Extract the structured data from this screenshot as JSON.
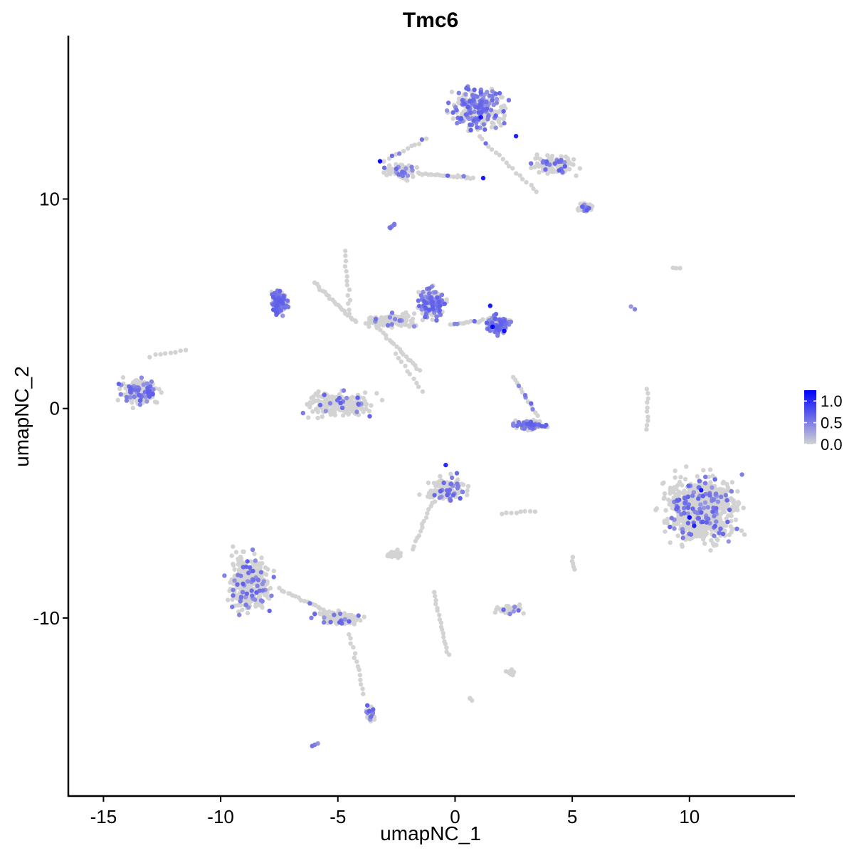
{
  "chart_data": {
    "type": "scatter",
    "title": "Tmc6",
    "xlabel": "umapNC_1",
    "ylabel": "umapNC_2",
    "xlim": [
      -16.5,
      14.5
    ],
    "ylim": [
      -18.5,
      17.8
    ],
    "x_ticks": [
      -15,
      -10,
      -5,
      0,
      5,
      10
    ],
    "x_tick_labels": [
      "-15",
      "-10",
      "-5",
      "0",
      "5",
      "10"
    ],
    "y_ticks": [
      -10,
      0,
      10
    ],
    "y_tick_labels": [
      "-10",
      "0",
      "10"
    ],
    "grid": false,
    "legend": {
      "placement": "right",
      "title": "",
      "labels": [
        "1.0",
        "0.5",
        "0.0"
      ],
      "values": [
        1.0,
        0.5,
        0.0
      ],
      "min": 0.0,
      "max": 1.25
    },
    "colors": {
      "low": "#d3d3d3",
      "high": "#0000ff",
      "axis": "#000000"
    },
    "clusters": [
      {
        "name": "upper-right lobe",
        "cx": 1.0,
        "cy": 14.3,
        "rx": 1.6,
        "ry": 1.4,
        "n": 260,
        "expr_frac": 0.42
      },
      {
        "name": "upper-right arm",
        "cx": 4.2,
        "cy": 11.6,
        "rx": 1.4,
        "ry": 0.6,
        "n": 110,
        "expr_frac": 0.18
      },
      {
        "name": "upper-right tail",
        "cx": 5.5,
        "cy": 9.6,
        "rx": 0.5,
        "ry": 0.35,
        "n": 35,
        "expr_frac": 0.35
      },
      {
        "name": "upper-left arm",
        "cx": -2.3,
        "cy": 11.3,
        "rx": 1.0,
        "ry": 0.5,
        "n": 70,
        "expr_frac": 0.25
      },
      {
        "name": "central hub",
        "cx": -2.7,
        "cy": 4.2,
        "rx": 1.5,
        "ry": 0.5,
        "n": 120,
        "expr_frac": 0.05
      },
      {
        "name": "crescent cluster",
        "cx": -7.5,
        "cy": 5.1,
        "rx": 0.5,
        "ry": 0.8,
        "n": 110,
        "expr_frac": 0.75
      },
      {
        "name": "mid lobe",
        "cx": -1.0,
        "cy": 5.0,
        "rx": 0.8,
        "ry": 1.1,
        "n": 140,
        "expr_frac": 0.45
      },
      {
        "name": "mid dense cluster",
        "cx": 1.9,
        "cy": 4.0,
        "rx": 0.7,
        "ry": 0.6,
        "n": 110,
        "expr_frac": 0.65
      },
      {
        "name": "bowl cluster",
        "cx": -5.0,
        "cy": 0.2,
        "rx": 2.0,
        "ry": 0.8,
        "n": 210,
        "expr_frac": 0.1
      },
      {
        "name": "left cluster",
        "cx": -13.5,
        "cy": 0.8,
        "rx": 1.2,
        "ry": 0.9,
        "n": 150,
        "expr_frac": 0.3
      },
      {
        "name": "curl cluster",
        "cx": 3.3,
        "cy": -0.8,
        "rx": 1.1,
        "ry": 0.35,
        "n": 70,
        "expr_frac": 0.45
      },
      {
        "name": "pear cluster",
        "cx": -0.4,
        "cy": -3.8,
        "rx": 1.2,
        "ry": 0.9,
        "n": 130,
        "expr_frac": 0.2
      },
      {
        "name": "large right cluster",
        "cx": 10.5,
        "cy": -4.8,
        "rx": 2.1,
        "ry": 2.1,
        "n": 800,
        "expr_frac": 0.12
      },
      {
        "name": "lower-left lobe",
        "cx": -8.8,
        "cy": -8.3,
        "rx": 1.3,
        "ry": 1.9,
        "n": 340,
        "expr_frac": 0.15
      },
      {
        "name": "lower trail",
        "cx": -5.0,
        "cy": -10.0,
        "rx": 1.4,
        "ry": 0.45,
        "n": 80,
        "expr_frac": 0.15
      },
      {
        "name": "small lower cluster",
        "cx": 2.3,
        "cy": -9.6,
        "rx": 0.8,
        "ry": 0.3,
        "n": 45,
        "expr_frac": 0.1
      },
      {
        "name": "bottom strand",
        "cx": -3.6,
        "cy": -14.6,
        "rx": 0.3,
        "ry": 0.8,
        "n": 35,
        "expr_frac": 0.4
      },
      {
        "name": "left patch",
        "cx": -2.6,
        "cy": -6.9,
        "rx": 0.5,
        "ry": 0.3,
        "n": 25,
        "expr_frac": 0.0
      },
      {
        "name": "low patch",
        "cx": 2.4,
        "cy": -12.6,
        "rx": 0.3,
        "ry": 0.2,
        "n": 12,
        "expr_frac": 0.0
      }
    ],
    "trails": [
      {
        "from": [
          -1.2,
          12.9
        ],
        "to": [
          -3.0,
          11.8
        ],
        "n": 12,
        "expr_frac": 0.2
      },
      {
        "from": [
          -1.5,
          11.2
        ],
        "to": [
          0.8,
          11.0
        ],
        "n": 22,
        "expr_frac": 0.15
      },
      {
        "from": [
          1.0,
          13.0
        ],
        "to": [
          3.5,
          10.3
        ],
        "n": 18,
        "expr_frac": 0.1
      },
      {
        "from": [
          -6.0,
          6.0
        ],
        "to": [
          -4.2,
          4.1
        ],
        "n": 22,
        "expr_frac": 0.05
      },
      {
        "from": [
          -4.7,
          7.5
        ],
        "to": [
          -4.5,
          4.5
        ],
        "n": 14,
        "expr_frac": 0.0
      },
      {
        "from": [
          -3.6,
          4.2
        ],
        "to": [
          -1.5,
          1.8
        ],
        "n": 22,
        "expr_frac": 0.1
      },
      {
        "from": [
          -2.5,
          2.6
        ],
        "to": [
          -1.4,
          0.8
        ],
        "n": 10,
        "expr_frac": 0.1
      },
      {
        "from": [
          -0.2,
          4.0
        ],
        "to": [
          1.2,
          4.2
        ],
        "n": 15,
        "expr_frac": 0.3
      },
      {
        "from": [
          2.5,
          1.5
        ],
        "to": [
          3.5,
          -0.3
        ],
        "n": 14,
        "expr_frac": 0.4
      },
      {
        "from": [
          -1.0,
          -4.5
        ],
        "to": [
          -1.8,
          -6.7
        ],
        "n": 14,
        "expr_frac": 0.0
      },
      {
        "from": [
          -7.5,
          -8.6
        ],
        "to": [
          -4.3,
          -10.3
        ],
        "n": 28,
        "expr_frac": 0.12
      },
      {
        "from": [
          -4.5,
          -10.8
        ],
        "to": [
          -3.9,
          -13.6
        ],
        "n": 14,
        "expr_frac": 0.0
      },
      {
        "from": [
          -0.9,
          -8.8
        ],
        "to": [
          -0.3,
          -11.8
        ],
        "n": 18,
        "expr_frac": 0.05
      },
      {
        "from": [
          8.2,
          -1.0
        ],
        "to": [
          8.2,
          0.9
        ],
        "n": 10,
        "expr_frac": 0.0
      },
      {
        "from": [
          -13.0,
          2.5
        ],
        "to": [
          -11.5,
          2.8
        ],
        "n": 8,
        "expr_frac": 0.0
      },
      {
        "from": [
          2.0,
          -5.0
        ],
        "to": [
          3.4,
          -4.9
        ],
        "n": 8,
        "expr_frac": 0.0
      },
      {
        "from": [
          5.0,
          -7.1
        ],
        "to": [
          5.1,
          -7.7
        ],
        "n": 5,
        "expr_frac": 0.0
      },
      {
        "from": [
          -2.8,
          8.6
        ],
        "to": [
          -2.6,
          8.8
        ],
        "n": 5,
        "expr_frac": 1.0
      },
      {
        "from": [
          9.3,
          6.7
        ],
        "to": [
          9.6,
          6.7
        ],
        "n": 3,
        "expr_frac": 0.0
      },
      {
        "from": [
          -6.1,
          -16.1
        ],
        "to": [
          -5.9,
          -16.0
        ],
        "n": 3,
        "expr_frac": 1.0
      },
      {
        "from": [
          0.6,
          -13.8
        ],
        "to": [
          0.7,
          -13.9
        ],
        "n": 3,
        "expr_frac": 0.0
      },
      {
        "from": [
          7.5,
          4.9
        ],
        "to": [
          7.6,
          4.8
        ],
        "n": 2,
        "expr_frac": 1.0
      }
    ],
    "high_points": [
      {
        "x": -3.2,
        "y": 11.8,
        "value": 1.2
      },
      {
        "x": 1.1,
        "y": 13.9,
        "value": 1.1
      },
      {
        "x": 2.6,
        "y": 13.0,
        "value": 1.05
      },
      {
        "x": 1.2,
        "y": 11.0,
        "value": 1.1
      },
      {
        "x": 1.6,
        "y": 3.9,
        "value": 1.2
      },
      {
        "x": 2.1,
        "y": 3.7,
        "value": 1.15
      },
      {
        "x": 1.5,
        "y": 4.9,
        "value": 1.1
      },
      {
        "x": 10.0,
        "y": -5.2,
        "value": 1.2
      },
      {
        "x": 10.5,
        "y": -3.9,
        "value": 1.1
      },
      {
        "x": 10.2,
        "y": -5.6,
        "value": 1.05
      },
      {
        "x": -0.4,
        "y": -2.7,
        "value": 1.0
      }
    ]
  }
}
